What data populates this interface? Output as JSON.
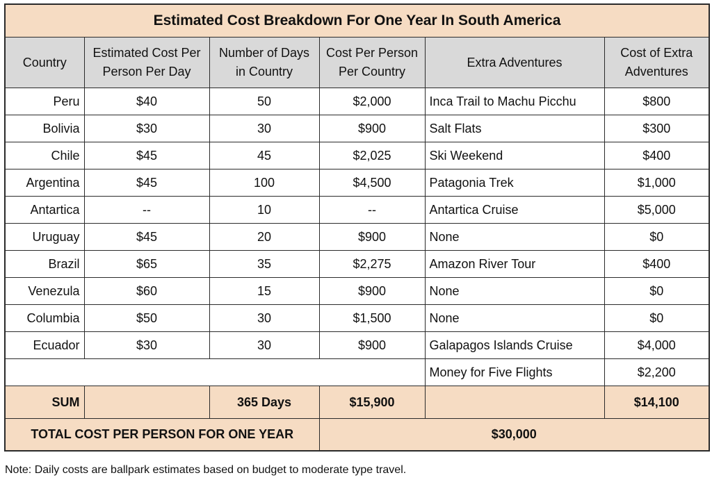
{
  "title": "Estimated Cost Breakdown For One Year In South America",
  "headers": {
    "country": "Country",
    "cost_per_day": [
      "Estimated Cost Per",
      "Person Per Day"
    ],
    "days": [
      "Number of Days",
      "in Country"
    ],
    "cost_per_country": [
      "Cost Per Person",
      "Per Country"
    ],
    "extra_adventures": "Extra Adventures",
    "extra_cost": [
      "Cost of Extra",
      "Adventures"
    ]
  },
  "rows": [
    {
      "country": "Peru",
      "per_day": "$40",
      "days": "50",
      "per_country": "$2,000",
      "adventure": "Inca Trail to Machu Picchu",
      "adventure_cost": "$800"
    },
    {
      "country": "Bolivia",
      "per_day": "$30",
      "days": "30",
      "per_country": "$900",
      "adventure": "Salt Flats",
      "adventure_cost": "$300"
    },
    {
      "country": "Chile",
      "per_day": "$45",
      "days": "45",
      "per_country": "$2,025",
      "adventure": "Ski Weekend",
      "adventure_cost": "$400"
    },
    {
      "country": "Argentina",
      "per_day": "$45",
      "days": "100",
      "per_country": "$4,500",
      "adventure": "Patagonia Trek",
      "adventure_cost": "$1,000"
    },
    {
      "country": "Antartica",
      "per_day": "--",
      "days": "10",
      "per_country": "--",
      "adventure": "Antartica Cruise",
      "adventure_cost": "$5,000"
    },
    {
      "country": "Uruguay",
      "per_day": "$45",
      "days": "20",
      "per_country": "$900",
      "adventure": "None",
      "adventure_cost": "$0"
    },
    {
      "country": "Brazil",
      "per_day": "$65",
      "days": "35",
      "per_country": "$2,275",
      "adventure": "Amazon River Tour",
      "adventure_cost": "$400"
    },
    {
      "country": "Venezula",
      "per_day": "$60",
      "days": "15",
      "per_country": "$900",
      "adventure": "None",
      "adventure_cost": "$0"
    },
    {
      "country": "Columbia",
      "per_day": "$50",
      "days": "30",
      "per_country": "$1,500",
      "adventure": "None",
      "adventure_cost": "$0"
    },
    {
      "country": "Ecuador",
      "per_day": "$30",
      "days": "30",
      "per_country": "$900",
      "adventure": "Galapagos Islands Cruise",
      "adventure_cost": "$4,000"
    }
  ],
  "extra_row": {
    "adventure": "Money for Five Flights",
    "adventure_cost": "$2,200"
  },
  "sum": {
    "label": "SUM",
    "days": "365 Days",
    "per_country": "$15,900",
    "adventure_cost": "$14,100"
  },
  "total": {
    "label": "TOTAL COST PER PERSON FOR ONE YEAR",
    "value": "$30,000"
  },
  "note": "Note: Daily costs are ballpark estimates based on budget to moderate type travel.",
  "colors": {
    "title_fill": "#f6dcc3",
    "header_fill": "#d9d9d9",
    "border": "#2a2a2a"
  }
}
